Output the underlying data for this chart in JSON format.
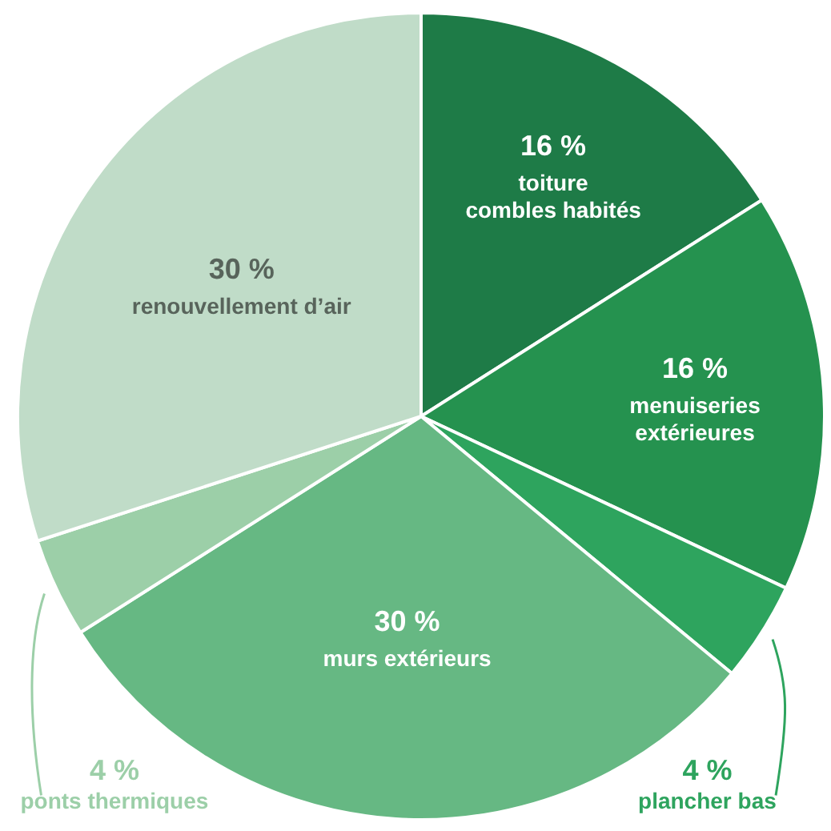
{
  "chart_data": {
    "type": "pie",
    "categories": [
      "toiture\ncombles habités",
      "menuiseries\nextérieures",
      "plancher bas",
      "murs extérieurs",
      "ponts thermiques",
      "renouvellement d’air"
    ],
    "values": [
      16,
      16,
      4,
      30,
      4,
      30
    ],
    "value_labels": [
      "16 %",
      "16 %",
      "4 %",
      "30 %",
      "4 %",
      "30 %"
    ],
    "colors": [
      "#1e7b47",
      "#25924f",
      "#2ea45e",
      "#66b883",
      "#9ccfa8",
      "#c0dcc8"
    ]
  }
}
